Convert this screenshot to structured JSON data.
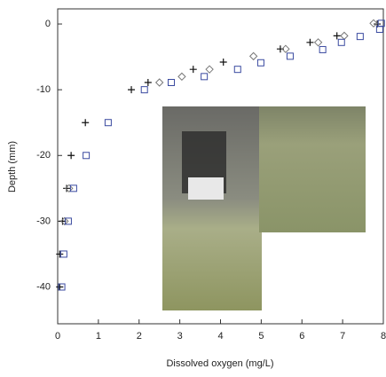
{
  "chart_data": {
    "type": "scatter",
    "x_label": "Dissolved oxygen (mg/L)",
    "y_label": "Depth (mm)",
    "xlim": [
      0,
      8
    ],
    "xticks": [
      0,
      1,
      2,
      3,
      4,
      5,
      6,
      7,
      8
    ],
    "ylim": [
      -45.6,
      2.3
    ],
    "yticks": [
      0,
      -10,
      -20,
      -30,
      -40
    ],
    "series": [
      {
        "marker": "plus",
        "color": "#111111",
        "x": [
          0.05,
          0.05,
          0.12,
          0.22,
          0.33,
          0.68,
          1.81,
          2.22,
          3.33,
          4.07,
          5.47,
          6.2,
          6.86,
          7.85
        ],
        "values": [
          -40,
          -35,
          -30,
          -25,
          -20,
          -15,
          -10,
          -8.9,
          -6.9,
          -5.8,
          -3.8,
          -2.8,
          -1.8,
          0
        ]
      },
      {
        "marker": "diamond",
        "color": "#777777",
        "x": [
          0.17,
          0.28,
          2.5,
          3.05,
          3.73,
          4.81,
          5.6,
          6.4,
          7.04,
          7.76
        ],
        "values": [
          -30,
          -25,
          -8.9,
          -8,
          -6.9,
          -4.9,
          -3.8,
          -2.8,
          -1.8,
          0.1
        ]
      },
      {
        "marker": "square",
        "color": "#3a4aa0",
        "x": [
          0.1,
          0.15,
          0.26,
          0.39,
          0.7,
          1.24,
          2.13,
          2.79,
          3.6,
          4.42,
          4.99,
          5.71,
          6.51,
          6.97,
          7.43,
          7.91,
          7.95
        ],
        "values": [
          -40,
          -35,
          -30,
          -25,
          -20,
          -15,
          -10,
          -8.9,
          -8,
          -6.9,
          -5.9,
          -4.9,
          -3.9,
          -2.8,
          -1.9,
          -0.8,
          0.1
        ]
      }
    ]
  }
}
